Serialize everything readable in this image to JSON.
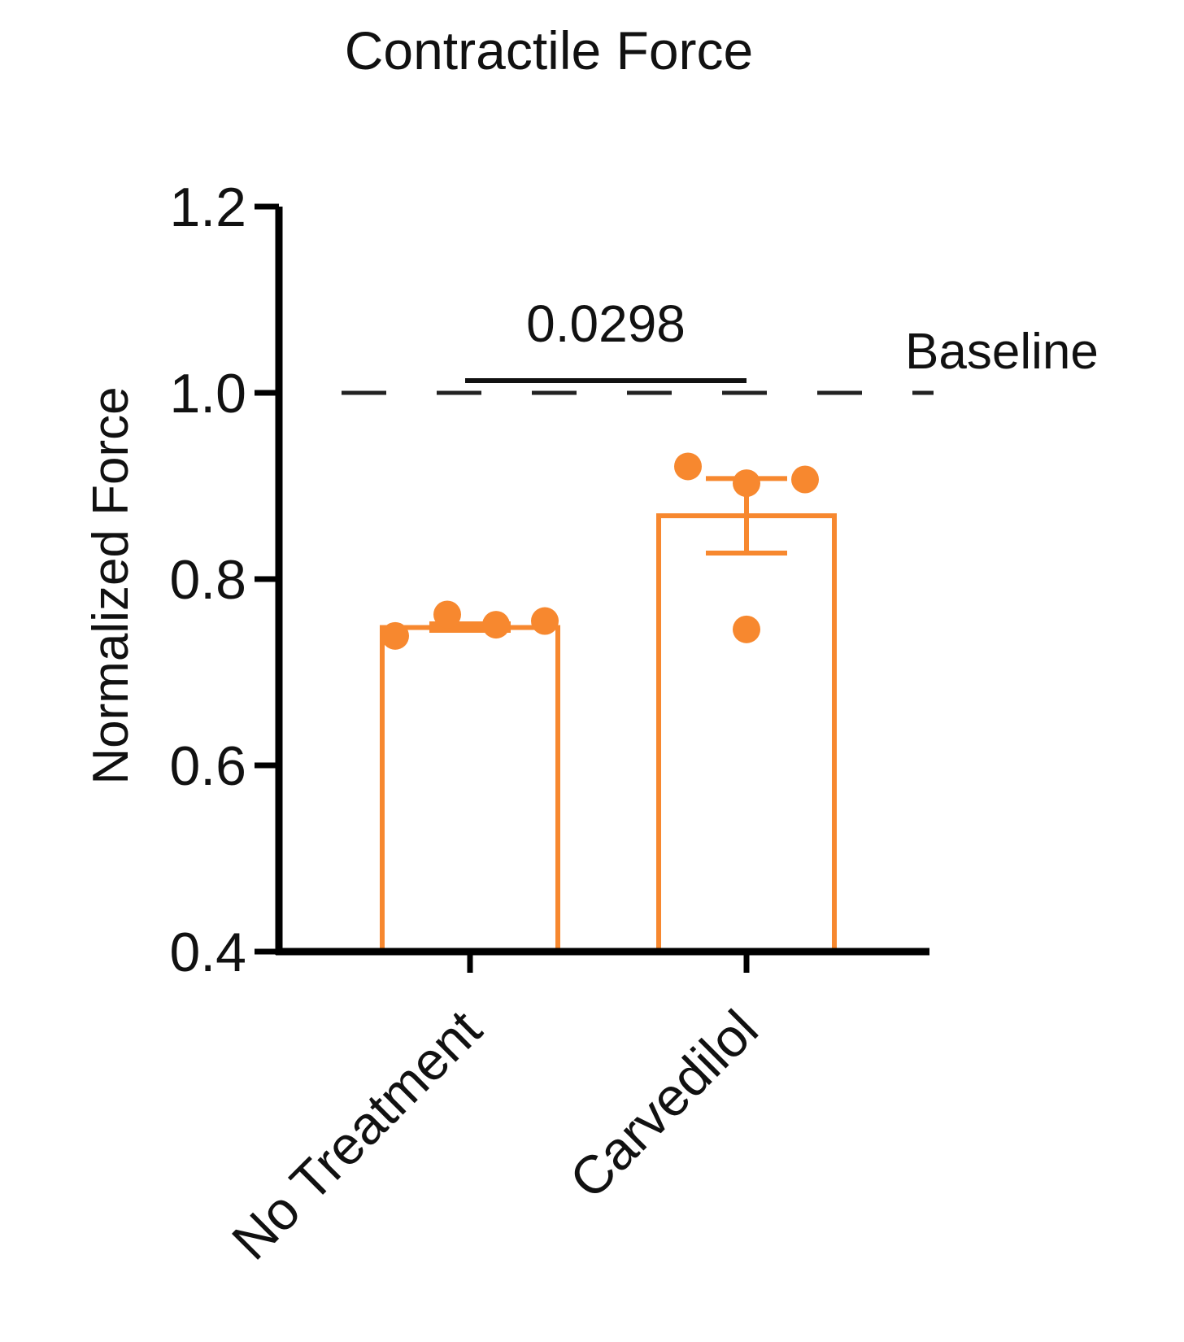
{
  "chart_data": {
    "type": "bar",
    "title": "Contractile Force",
    "xlabel": "",
    "ylabel": "Normalized Force",
    "ylim": [
      0.4,
      1.2
    ],
    "yticks": [
      "0.4",
      "0.6",
      "0.8",
      "1.0",
      "1.2"
    ],
    "categories": [
      "No Treatment",
      "Carvedilol"
    ],
    "values": [
      0.748,
      0.868
    ],
    "error_bars": [
      {
        "low": 0.745,
        "high": 0.752
      },
      {
        "low": 0.828,
        "high": 0.908
      }
    ],
    "points": [
      [
        0.739,
        0.762,
        0.751,
        0.755
      ],
      [
        0.921,
        0.903,
        0.907,
        0.746
      ]
    ],
    "reference_line": {
      "value": 1.0,
      "label": "Baseline",
      "style": "dashed"
    },
    "significance": {
      "label": "0.0298",
      "between": [
        0,
        1
      ]
    },
    "grid": false,
    "legend": "none",
    "colors": {
      "series": "#F7882F",
      "axis": "#000000",
      "text": "#111111",
      "reference": "#222222"
    }
  }
}
